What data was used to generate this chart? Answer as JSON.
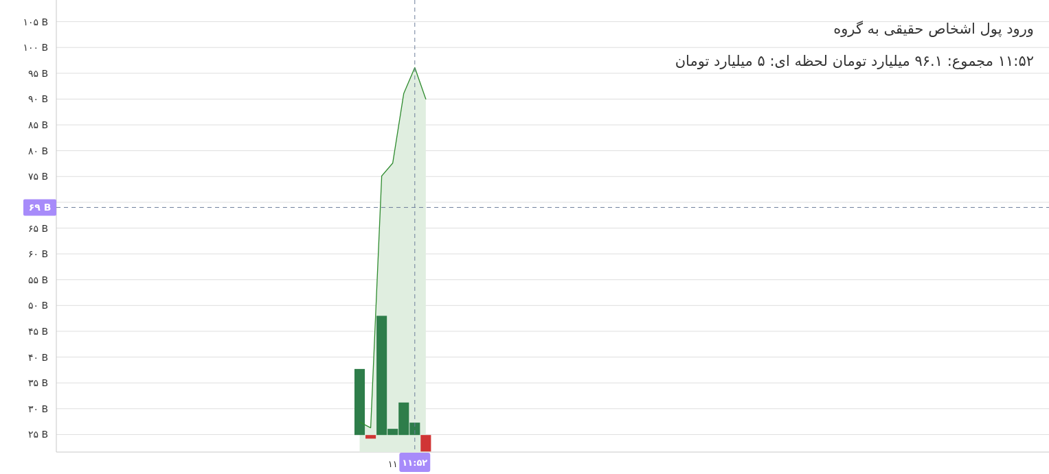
{
  "chart_data": {
    "type": "bar",
    "title": "ورود پول اشخاص حقیقی به گروه",
    "subtitle": "۱۱:۵۲ مجموع: ۹۶.۱ میلیارد تومان لحظه ای: ۵ میلیارد تومان",
    "categories": [
      null,
      null,
      null,
      null,
      null,
      null,
      null,
      null,
      null,
      null,
      null,
      null,
      null,
      null,
      null,
      null,
      null,
      null,
      null,
      null,
      null,
      null,
      null,
      null,
      null,
      null,
      null,
      null,
      null,
      null,
      "۱۱",
      null,
      "۱۱:۵۲",
      null,
      null,
      null,
      null,
      null,
      null,
      null,
      null,
      null,
      null,
      null,
      null,
      null,
      null,
      null,
      null,
      null,
      null,
      null,
      null,
      null,
      null,
      null,
      null,
      null,
      null,
      null,
      null,
      null,
      null,
      null,
      null,
      null,
      null,
      null,
      null,
      null,
      null,
      null,
      null,
      null,
      null,
      null,
      null,
      null,
      null,
      null,
      null,
      null,
      null,
      null,
      null,
      null,
      null,
      null,
      null,
      null
    ],
    "series": [
      {
        "type": "area",
        "color": "#2e8b2e",
        "values": [
          null,
          null,
          null,
          null,
          null,
          null,
          null,
          null,
          null,
          null,
          null,
          null,
          null,
          null,
          null,
          null,
          null,
          null,
          null,
          null,
          null,
          null,
          null,
          null,
          null,
          null,
          null,
          27.4,
          26.3,
          75.1,
          77.6,
          91.1,
          96.1,
          90.0,
          null,
          null,
          null,
          null,
          null,
          null,
          null,
          null,
          null,
          null,
          null,
          null,
          null,
          null,
          null,
          null,
          null,
          null,
          null,
          null,
          null,
          null,
          null,
          null,
          null,
          null,
          null,
          null,
          null,
          null,
          null,
          null,
          null,
          null,
          null,
          null,
          null,
          null,
          null,
          null,
          null,
          null,
          null,
          null,
          null,
          null,
          null,
          null,
          null,
          null,
          null,
          null,
          null,
          null,
          null,
          null
        ]
      },
      {
        "color": "#2e7d4a",
        "values": [
          null,
          null,
          null,
          null,
          null,
          null,
          null,
          null,
          null,
          null,
          null,
          null,
          null,
          null,
          null,
          null,
          null,
          null,
          null,
          null,
          null,
          null,
          null,
          null,
          null,
          null,
          null,
          12.8,
          null,
          23.1,
          1.2,
          6.3,
          2.4,
          null,
          null,
          null,
          null,
          null,
          null,
          null,
          null,
          null,
          null,
          null,
          null,
          null,
          null,
          null,
          null,
          null,
          null,
          null,
          null,
          null,
          null,
          null,
          null,
          null,
          null,
          null,
          null,
          null,
          null,
          null,
          null,
          null,
          null,
          null,
          null,
          null,
          null,
          null,
          null,
          null,
          null,
          null,
          null,
          null,
          null,
          null,
          null,
          null,
          null,
          null,
          null,
          null,
          null,
          null,
          null,
          null
        ],
        "base": [
          null,
          null,
          null,
          null,
          null,
          null,
          null,
          null,
          null,
          null,
          null,
          null,
          null,
          null,
          null,
          null,
          null,
          null,
          null,
          null,
          null,
          null,
          null,
          null,
          null,
          null,
          null,
          24.9,
          null,
          24.9,
          24.9,
          24.9,
          24.9,
          null,
          null,
          null,
          null,
          null,
          null,
          null,
          null,
          null,
          null,
          null,
          null,
          null,
          null,
          null,
          null,
          null,
          null,
          null,
          null,
          null,
          null,
          null,
          null,
          null,
          null,
          null,
          null,
          null,
          null,
          null,
          null,
          null,
          null,
          null,
          null,
          null,
          null,
          null,
          null,
          null,
          null,
          null,
          null,
          null,
          null,
          null,
          null,
          null,
          null,
          null,
          null,
          null,
          null,
          null,
          null,
          null
        ]
      },
      {
        "color": "#d03535",
        "values": [
          null,
          null,
          null,
          null,
          null,
          null,
          null,
          null,
          null,
          null,
          null,
          null,
          null,
          null,
          null,
          null,
          null,
          null,
          null,
          null,
          null,
          null,
          null,
          null,
          null,
          null,
          null,
          null,
          -0.7,
          null,
          null,
          null,
          null,
          -3.2,
          null,
          null,
          null,
          null,
          null,
          null,
          null,
          null,
          null,
          null,
          null,
          null,
          null,
          null,
          null,
          null,
          null,
          null,
          null,
          null,
          null,
          null,
          null,
          null,
          null,
          null,
          null,
          null,
          null,
          null,
          null,
          null,
          null,
          null,
          null,
          null,
          null,
          null,
          null,
          null,
          null,
          null,
          null,
          null,
          null,
          null,
          null,
          null,
          null,
          null,
          null,
          null,
          null,
          null,
          null,
          null
        ],
        "base": [
          null,
          null,
          null,
          null,
          null,
          null,
          null,
          null,
          null,
          null,
          null,
          null,
          null,
          null,
          null,
          null,
          null,
          null,
          null,
          null,
          null,
          null,
          null,
          null,
          null,
          null,
          null,
          null,
          24.9,
          null,
          null,
          null,
          null,
          24.9,
          null,
          null,
          null,
          null,
          null,
          null,
          null,
          null,
          null,
          null,
          null,
          null,
          null,
          null,
          null,
          null,
          null,
          null,
          null,
          null,
          null,
          null,
          null,
          null,
          null,
          null,
          null,
          null,
          null,
          null,
          null,
          null,
          null,
          null,
          null,
          null,
          null,
          null,
          null,
          null,
          null,
          null,
          null,
          null,
          null,
          null,
          null,
          null,
          null,
          null,
          null,
          null,
          null,
          null,
          null,
          null
        ]
      }
    ],
    "ylim": [
      21.6,
      109.2
    ],
    "yticks": [
      {
        "value": 25,
        "label": "۲۵ B"
      },
      {
        "value": 30,
        "label": "۳۰ B"
      },
      {
        "value": 35,
        "label": "۳۵ B"
      },
      {
        "value": 40,
        "label": "۴۰ B"
      },
      {
        "value": 45,
        "label": "۴۵ B"
      },
      {
        "value": 50,
        "label": "۵۰ B"
      },
      {
        "value": 55,
        "label": "۵۵ B"
      },
      {
        "value": 60,
        "label": "۶۰ B"
      },
      {
        "value": 65,
        "label": "۶۵ B"
      },
      {
        "value": 70,
        "label": null
      },
      {
        "value": 75,
        "label": "۷۵ B"
      },
      {
        "value": 80,
        "label": "۸۰ B"
      },
      {
        "value": 85,
        "label": "۸۵ B"
      },
      {
        "value": 90,
        "label": "۹۰ B"
      },
      {
        "value": 95,
        "label": "۹۵ B"
      },
      {
        "value": 100,
        "label": "۱۰۰ B"
      },
      {
        "value": 105,
        "label": "۱۰۵ B"
      }
    ],
    "grid": "y",
    "ref_lines": [
      {
        "axis": "y",
        "value": 69,
        "label": "۶۹ B",
        "color": "#6b7c99",
        "line_style": "dashed"
      },
      {
        "axis": "x",
        "value": "۱۱:۵۲",
        "color": "#6b7c99",
        "line_style": "dashed"
      }
    ]
  }
}
